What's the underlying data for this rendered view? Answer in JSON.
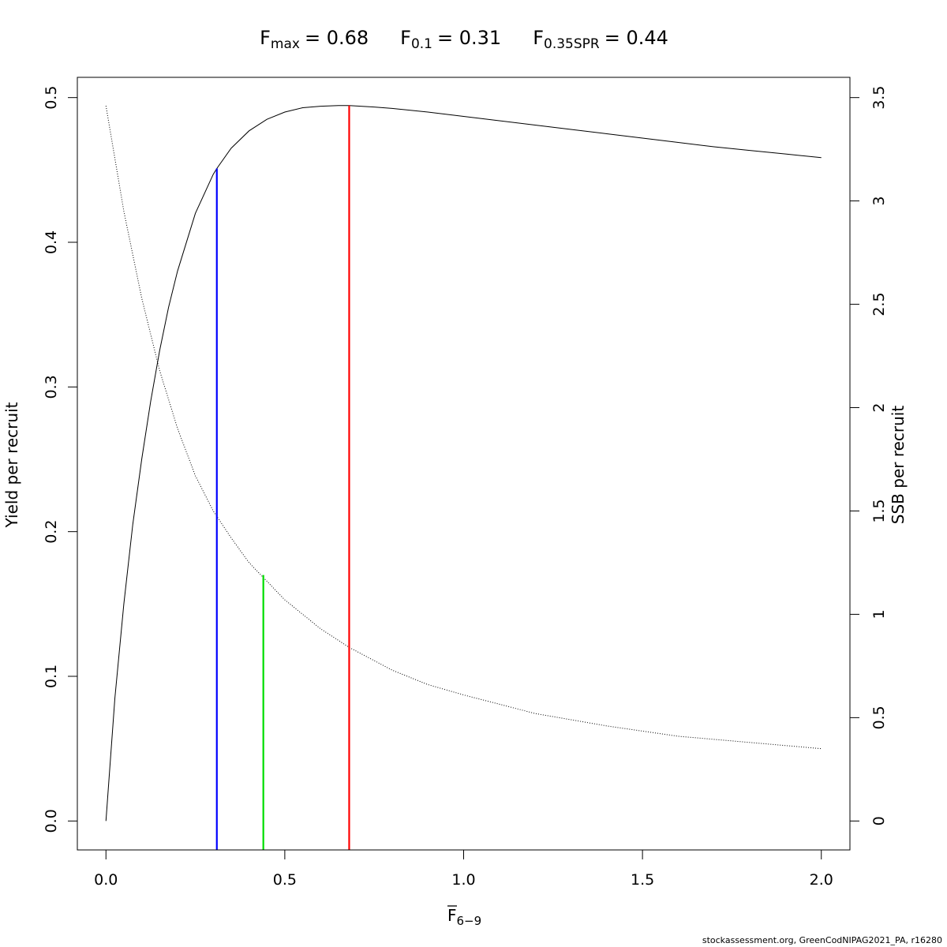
{
  "chart_data": {
    "type": "line",
    "title_parts": {
      "fmax_label": "F",
      "fmax_sub": "max",
      "fmax_value": "= 0.68",
      "f01_label": "F",
      "f01_sub": "0.1",
      "f01_value": "= 0.31",
      "fspr_label": "F",
      "fspr_sub": "0.35SPR",
      "fspr_value": "= 0.44"
    },
    "xlabel_main": "F",
    "xlabel_sub": "6−9",
    "ylabel_left": "Yield per recruit",
    "ylabel_right": "SSB per recruit",
    "xlim": [
      -0.08,
      2.08
    ],
    "ylim_left": [
      -0.02,
      0.514
    ],
    "ylim_right": [
      -0.14,
      3.598
    ],
    "x_ticks": [
      {
        "value": 0.0,
        "label": "0.0"
      },
      {
        "value": 0.5,
        "label": "0.5"
      },
      {
        "value": 1.0,
        "label": "1.0"
      },
      {
        "value": 1.5,
        "label": "1.5"
      },
      {
        "value": 2.0,
        "label": "2.0"
      }
    ],
    "y_left_ticks": [
      {
        "value": 0.0,
        "label": "0.0"
      },
      {
        "value": 0.1,
        "label": "0.1"
      },
      {
        "value": 0.2,
        "label": "0.2"
      },
      {
        "value": 0.3,
        "label": "0.3"
      },
      {
        "value": 0.4,
        "label": "0.4"
      },
      {
        "value": 0.5,
        "label": "0.5"
      }
    ],
    "y_right_ticks": [
      {
        "value": 0,
        "label": "0"
      },
      {
        "value": 0.5,
        "label": "0.5"
      },
      {
        "value": 1,
        "label": "1"
      },
      {
        "value": 1.5,
        "label": "1.5"
      },
      {
        "value": 2,
        "label": "2"
      },
      {
        "value": 2.5,
        "label": "2.5"
      },
      {
        "value": 3,
        "label": "3"
      },
      {
        "value": 3.5,
        "label": "3.5"
      }
    ],
    "series": [
      {
        "axis": "left",
        "style": "solid",
        "x": [
          0.0,
          0.025,
          0.05,
          0.075,
          0.1,
          0.125,
          0.15,
          0.175,
          0.2,
          0.25,
          0.3,
          0.31,
          0.35,
          0.4,
          0.45,
          0.5,
          0.55,
          0.6,
          0.65,
          0.68,
          0.75,
          0.8,
          0.9,
          1.0,
          1.1,
          1.2,
          1.3,
          1.4,
          1.5,
          1.6,
          1.7,
          1.8,
          1.9,
          2.0
        ],
        "y": [
          0.0,
          0.085,
          0.15,
          0.205,
          0.25,
          0.29,
          0.325,
          0.355,
          0.38,
          0.42,
          0.447,
          0.451,
          0.465,
          0.477,
          0.485,
          0.49,
          0.493,
          0.494,
          0.4945,
          0.4945,
          0.4935,
          0.4925,
          0.49,
          0.487,
          0.484,
          0.481,
          0.478,
          0.475,
          0.472,
          0.469,
          0.466,
          0.4635,
          0.461,
          0.4585
        ]
      },
      {
        "axis": "right",
        "style": "dotted",
        "x": [
          0.0,
          0.05,
          0.1,
          0.15,
          0.2,
          0.25,
          0.3,
          0.35,
          0.4,
          0.45,
          0.5,
          0.6,
          0.68,
          0.8,
          0.9,
          1.0,
          1.2,
          1.4,
          1.6,
          1.8,
          2.0
        ],
        "y": [
          3.46,
          2.95,
          2.53,
          2.18,
          1.9,
          1.67,
          1.5,
          1.37,
          1.25,
          1.16,
          1.07,
          0.93,
          0.84,
          0.73,
          0.66,
          0.61,
          0.52,
          0.46,
          0.41,
          0.38,
          0.35
        ]
      }
    ],
    "reference_lines": [
      {
        "name": "F0.1",
        "x": 0.31,
        "y_top": 0.451,
        "color": "#0000ff"
      },
      {
        "name": "F0.35SPR",
        "x": 0.44,
        "y_top": 0.17,
        "color": "#00dd00"
      },
      {
        "name": "Fmax",
        "x": 0.68,
        "y_top": 0.4945,
        "color": "#ff0000"
      }
    ],
    "grid": false
  },
  "credit": "stockassessment.org, GreenCodNIPAG2021_PA, r16280"
}
